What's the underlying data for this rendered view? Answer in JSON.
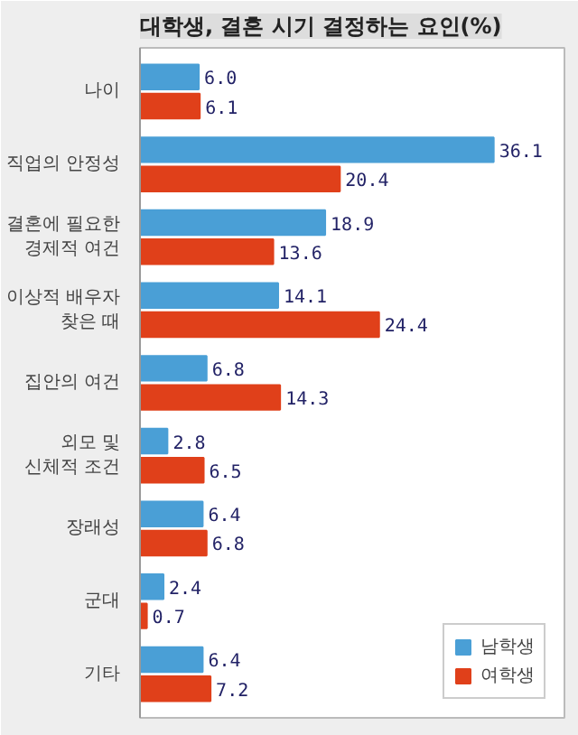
{
  "chart_data": {
    "type": "bar",
    "orientation": "horizontal",
    "title": "대학생, 결혼 시기 결정하는 요인(%)",
    "categories": [
      "나이",
      "직업의 안정성",
      "결혼에 필요한\n경제적 여건",
      "이상적 배우자\n찾은 때",
      "집안의 여건",
      "외모 및\n신체적 조건",
      "장래성",
      "군대",
      "기타"
    ],
    "series": [
      {
        "name": "남학생",
        "color": "#4a9fd6",
        "values": [
          6.0,
          36.1,
          18.9,
          14.1,
          6.8,
          2.8,
          6.4,
          2.4,
          6.4
        ],
        "value_labels": [
          "6.0",
          "36.1",
          "18.9",
          "14.1",
          "6.8",
          "2.8",
          "6.4",
          "2.4",
          "6.4"
        ]
      },
      {
        "name": "여학생",
        "color": "#e0401a",
        "values": [
          6.1,
          20.4,
          13.6,
          24.4,
          14.3,
          6.5,
          6.8,
          0.7,
          7.2
        ],
        "value_labels": [
          "6.1",
          "20.4",
          "13.6",
          "24.4",
          "14.3",
          "6.5",
          "6.8",
          "0.7",
          "7.2"
        ]
      }
    ],
    "legend": "bottom right",
    "grid": false,
    "tick_labels": "y"
  }
}
